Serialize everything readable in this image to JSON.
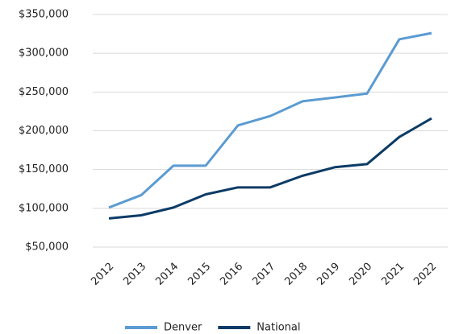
{
  "chart_data": {
    "type": "line",
    "categories": [
      "2012",
      "2013",
      "2014",
      "2015",
      "2016",
      "2017",
      "2018",
      "2019",
      "2020",
      "2021",
      "2022"
    ],
    "series": [
      {
        "name": "Denver",
        "color": "#5b9bd2",
        "values": [
          101000,
          117000,
          155000,
          155000,
          207000,
          219000,
          238000,
          243000,
          248000,
          318000,
          326000
        ]
      },
      {
        "name": "National",
        "color": "#0c3b66",
        "values": [
          87000,
          91000,
          101000,
          118000,
          127000,
          127000,
          142000,
          153000,
          157000,
          192000,
          216000
        ]
      }
    ],
    "ylim": [
      50000,
      350000
    ],
    "yticks": [
      {
        "value": 50000,
        "label": "$50,000"
      },
      {
        "value": 100000,
        "label": "$100,000"
      },
      {
        "value": 150000,
        "label": "$150,000"
      },
      {
        "value": 200000,
        "label": "$200,000"
      },
      {
        "value": 250000,
        "label": "$250,000"
      },
      {
        "value": 300000,
        "label": "$300,000"
      },
      {
        "value": 350000,
        "label": "$350,000"
      }
    ],
    "grid": true,
    "legend": "bottom"
  }
}
